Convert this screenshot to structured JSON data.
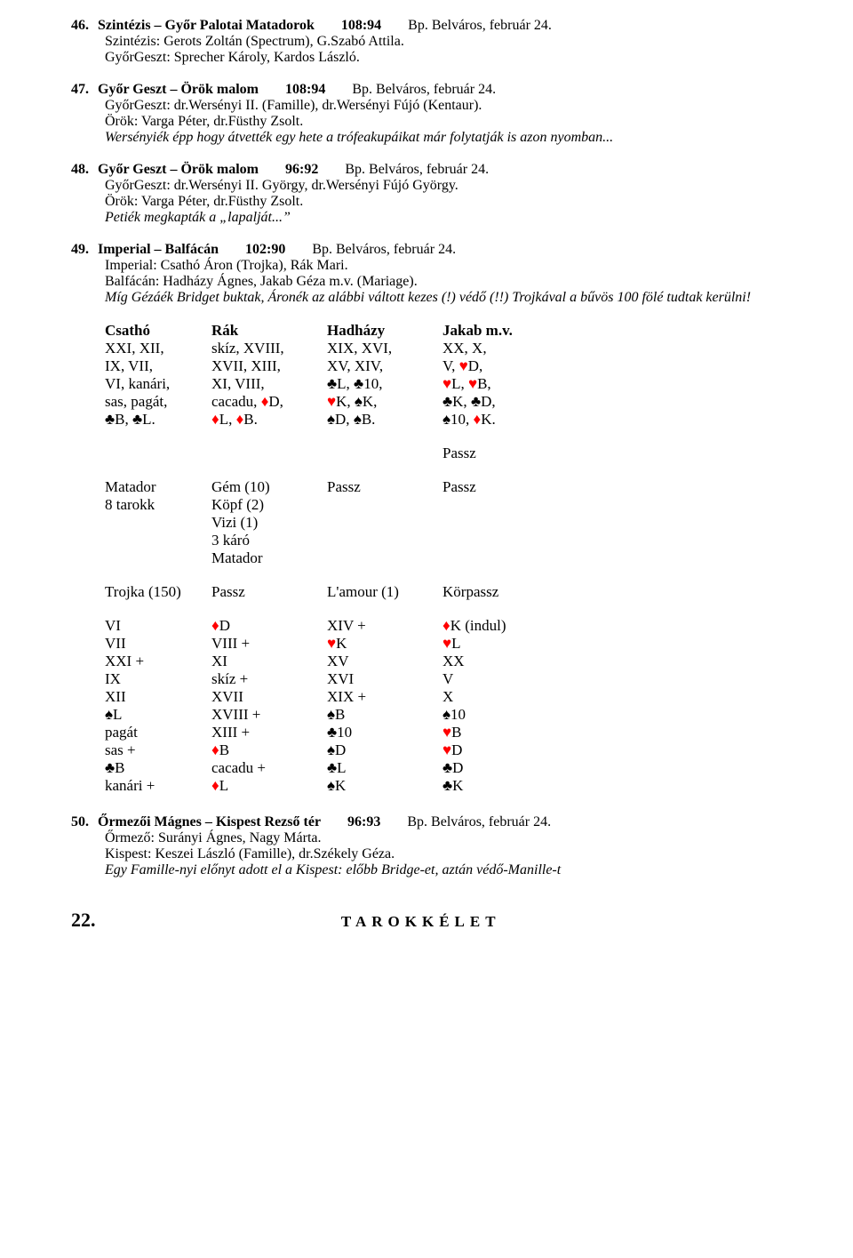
{
  "body_fontsize": 17,
  "entries": [
    {
      "num": "46.",
      "title": "Szintézis – Győr Palotai Matadorok",
      "score": "108:94",
      "loc": "Bp. Belváros, február 24.",
      "lines": [
        {
          "text": "Szintézis: Gerots Zoltán (Spectrum), G.Szabó Attila.",
          "italic": false
        },
        {
          "text": "GyőrGeszt: Sprecher Károly, Kardos László.",
          "italic": false
        }
      ]
    },
    {
      "num": "47.",
      "title": "Győr Geszt – Örök malom",
      "score": "108:94",
      "loc": "Bp. Belváros, február 24.",
      "lines": [
        {
          "text": "GyőrGeszt: dr.Wersényi II. (Famille), dr.Wersényi Fújó (Kentaur).",
          "italic": false
        },
        {
          "text": "Örök: Varga Péter, dr.Füsthy Zsolt.",
          "italic": false
        }
      ],
      "wrap_italic": "Wersényiék épp hogy átvették egy hete a trófeakupáikat már folytatják is azon nyomban..."
    },
    {
      "num": "48.",
      "title": "Győr Geszt – Örök malom",
      "score": "96:92",
      "loc": "Bp. Belváros, február 24.",
      "lines": [
        {
          "text": "GyőrGeszt: dr.Wersényi II. György, dr.Wersényi Fújó György.",
          "italic": false
        },
        {
          "text": "Örök: Varga Péter, dr.Füsthy Zsolt.",
          "italic": false
        },
        {
          "text": "Petiék megkapták a „lapalját...”",
          "italic": true
        }
      ]
    },
    {
      "num": "49.",
      "title": "Imperial – Balfácán",
      "score": "102:90",
      "loc": "Bp. Belváros, február 24.",
      "lines": [
        {
          "text": "Imperial: Csathó Áron (Trojka), Rák Mari.",
          "italic": false
        },
        {
          "text": "Balfácán: Hadházy Ágnes, Jakab Géza m.v. (Mariage).",
          "italic": false
        }
      ],
      "wrap_italic": "Míg Gézáék Bridget buktak, Áronék az alábbi váltott kezes (!) védő (!!) Trojkával a bűvös 100 fölé tudtak kerülni!"
    }
  ],
  "hand_headers": [
    "Csathó",
    "Rák",
    "Hadházy",
    "Jakab m.v."
  ],
  "hand_rows": [
    [
      "XXI, XII,",
      "skíz, XVIII,",
      "XIX, XVI,",
      "XX, X,"
    ],
    [
      "IX, VII,",
      "XVII, XIII,",
      "XV, XIV,",
      "V, ♥D,"
    ],
    [
      "VI, kanári,",
      "XI, VIII,",
      "♣L, ♣10,",
      "♥L, ♥B,"
    ],
    [
      "sas, pagát,",
      "cacadu, ♦D,",
      "♥K, ♠K,",
      "♣K, ♣D,"
    ],
    [
      "♣B, ♣L.",
      "♦L, ♦B.",
      "♠D, ♠B.",
      "♠10, ♦K."
    ]
  ],
  "passz_single": "Passz",
  "bidding_rows": [
    [
      "Matador",
      "Gém (10)",
      "Passz",
      "Passz"
    ],
    [
      "8 tarokk",
      "Köpf (2)",
      "",
      ""
    ],
    [
      "",
      "Vizi (1)",
      "",
      ""
    ],
    [
      "",
      "3 káró",
      "",
      ""
    ],
    [
      "",
      "Matador",
      "",
      ""
    ]
  ],
  "bidding_row2": [
    "Trojka (150)",
    "Passz",
    "L'amour (1)",
    "Körpassz"
  ],
  "play_rows": [
    [
      "VI",
      "♦D",
      "XIV +",
      "♦K (indul)"
    ],
    [
      "VII",
      "VIII +",
      "♥K",
      "♥L"
    ],
    [
      "XXI +",
      "XI",
      "XV",
      "XX"
    ],
    [
      "IX",
      "skíz +",
      "XVI",
      "V"
    ],
    [
      "XII",
      "XVII",
      "XIX +",
      "X"
    ],
    [
      "♠L",
      "XVIII +",
      "♠B",
      "♠10"
    ],
    [
      "pagát",
      "XIII +",
      "♣10",
      "♥B"
    ],
    [
      "sas +",
      "♦B",
      "♠D",
      "♥D"
    ],
    [
      "♣B",
      "cacadu +",
      "♣L",
      "♣D"
    ],
    [
      "kanári +",
      "♦L",
      "♠K",
      "♣K"
    ]
  ],
  "entry50": {
    "num": "50.",
    "title": "Őrmezői Mágnes – Kispest Rezső tér",
    "score": "96:93",
    "loc": "Bp. Belváros, február 24.",
    "lines": [
      {
        "text": "Őrmező: Surányi Ágnes, Nagy Márta.",
        "italic": false
      },
      {
        "text": "Kispest: Keszei László (Famille), dr.Székely Géza.",
        "italic": false
      },
      {
        "text": "Egy Famille-nyi előnyt adott el a Kispest: előbb Bridge-et, aztán védő-Manille-t",
        "italic": true
      }
    ]
  },
  "footer": {
    "page": "22.",
    "title": "TAROKKÉLET"
  }
}
